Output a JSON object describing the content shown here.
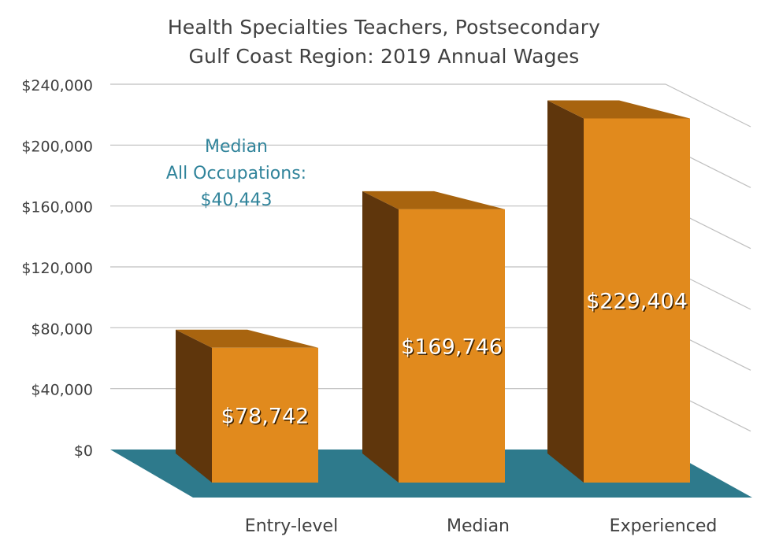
{
  "chart_data": {
    "type": "bar",
    "title": "Health Specialties Teachers, Postsecondary",
    "subtitle": "Gulf Coast Region: 2019 Annual Wages",
    "categories": [
      "Entry-level",
      "Median",
      "Experienced"
    ],
    "series": [
      {
        "values": [
          78742,
          169746,
          229404
        ]
      }
    ],
    "data_labels": [
      "$78,742",
      "$169,746",
      "$229,404"
    ],
    "y_ticks": [
      "$0",
      "$40,000",
      "$80,000",
      "$120,000",
      "$160,000",
      "$200,000",
      "$240,000"
    ],
    "ylim": [
      0,
      240000
    ],
    "grid": true,
    "annotation": {
      "lines": [
        "Median",
        "All Occupations:",
        "$40,443"
      ],
      "value": 40443
    },
    "colors": {
      "bar_front": "#E18A1D",
      "bar_side": "#5F360C",
      "bar_top": "#A8640F",
      "floor": "#2E7A8C",
      "annotation": "#31849B",
      "text": "#404040",
      "grid": "#BFBFBF"
    }
  }
}
